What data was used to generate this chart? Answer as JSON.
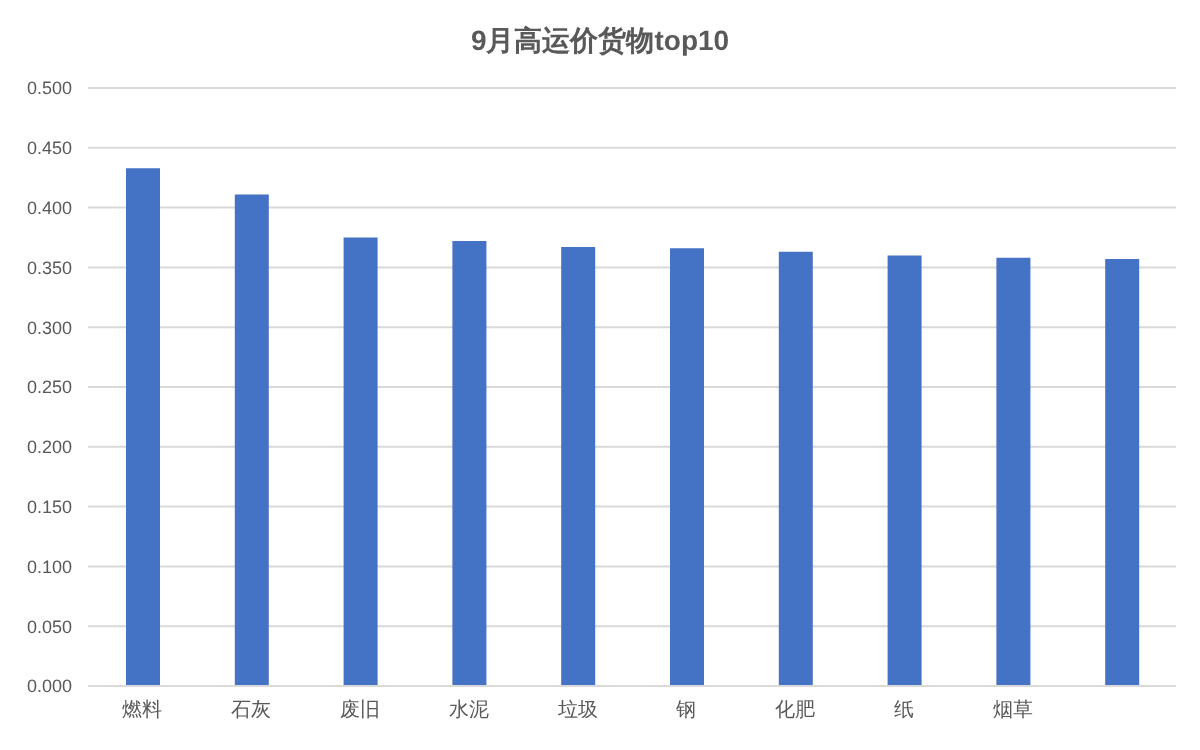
{
  "chart_data": {
    "type": "bar",
    "title": "9月高运价货物top10",
    "categories": [
      "燃料",
      "石灰",
      "废旧",
      "水泥",
      "垃圾",
      "钢",
      "化肥",
      "纸",
      "烟草",
      null
    ],
    "series": [
      {
        "color": "#4472c4",
        "values": [
          0.433,
          0.411,
          0.375,
          0.372,
          0.367,
          0.366,
          0.363,
          0.36,
          0.358,
          0.357
        ]
      }
    ],
    "ylim": [
      0,
      0.5
    ],
    "yticks": [
      {
        "value": 0,
        "label": "0.000"
      },
      {
        "value": 0.05,
        "label": "0.050"
      },
      {
        "value": 0.1,
        "label": "0.100"
      },
      {
        "value": 0.15,
        "label": "0.150"
      },
      {
        "value": 0.2,
        "label": "0.200"
      },
      {
        "value": 0.25,
        "label": "0.250"
      },
      {
        "value": 0.3,
        "label": "0.300"
      },
      {
        "value": 0.35,
        "label": "0.350"
      },
      {
        "value": 0.4,
        "label": "0.400"
      },
      {
        "value": 0.45,
        "label": "0.450"
      },
      {
        "value": 0.5,
        "label": "0.500"
      }
    ],
    "grid": "y"
  }
}
